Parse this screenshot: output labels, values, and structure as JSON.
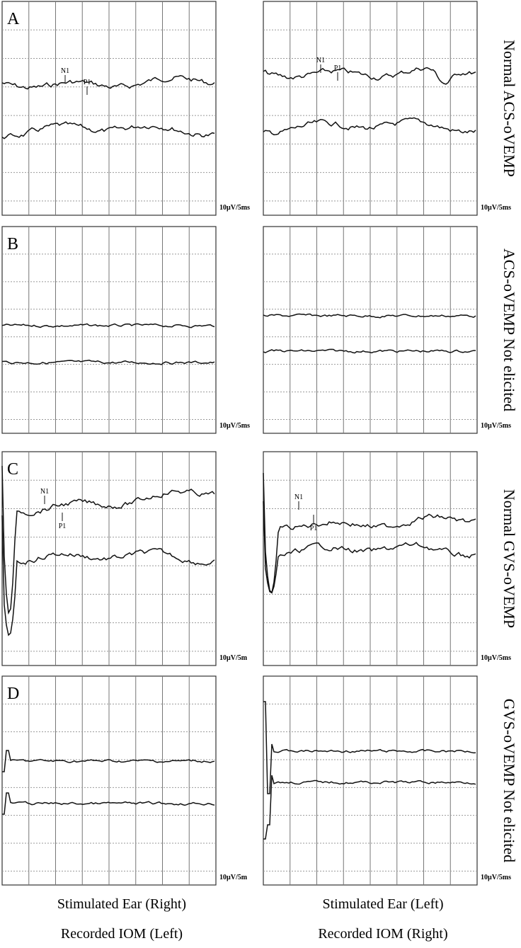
{
  "panels": [
    {
      "label": "A",
      "side_label": "Normal ACS-oVEMP",
      "left": {
        "scale": "10µV/5ms",
        "markers": [
          "N1",
          "P1"
        ]
      },
      "right": {
        "scale": "10µV/5ms",
        "markers": [
          "N1",
          "P1"
        ]
      }
    },
    {
      "label": "B",
      "side_label": "ACS-oVEMP Not elicited",
      "left": {
        "scale": "10µV/5ms",
        "markers": []
      },
      "right": {
        "scale": "10µV/5ms",
        "markers": []
      }
    },
    {
      "label": "C",
      "side_label": "Normal GVS-oVEMP",
      "left": {
        "scale": "10µV/5m",
        "markers": [
          "N1",
          "P1"
        ]
      },
      "right": {
        "scale": "10µV/5ms",
        "markers": [
          "N1",
          "P1"
        ]
      }
    },
    {
      "label": "D",
      "side_label": "GVS-oVEMP Not elicited",
      "left": {
        "scale": "10µV/5m",
        "markers": []
      },
      "right": {
        "scale": "10µV/5ms",
        "markers": []
      }
    }
  ],
  "footer": {
    "left": [
      "Stimulated  Ear (Right)",
      "Recorded IOM (Left)"
    ],
    "right": [
      "Stimulated  Ear (Left)",
      "Recorded IOM (Right)"
    ]
  }
}
